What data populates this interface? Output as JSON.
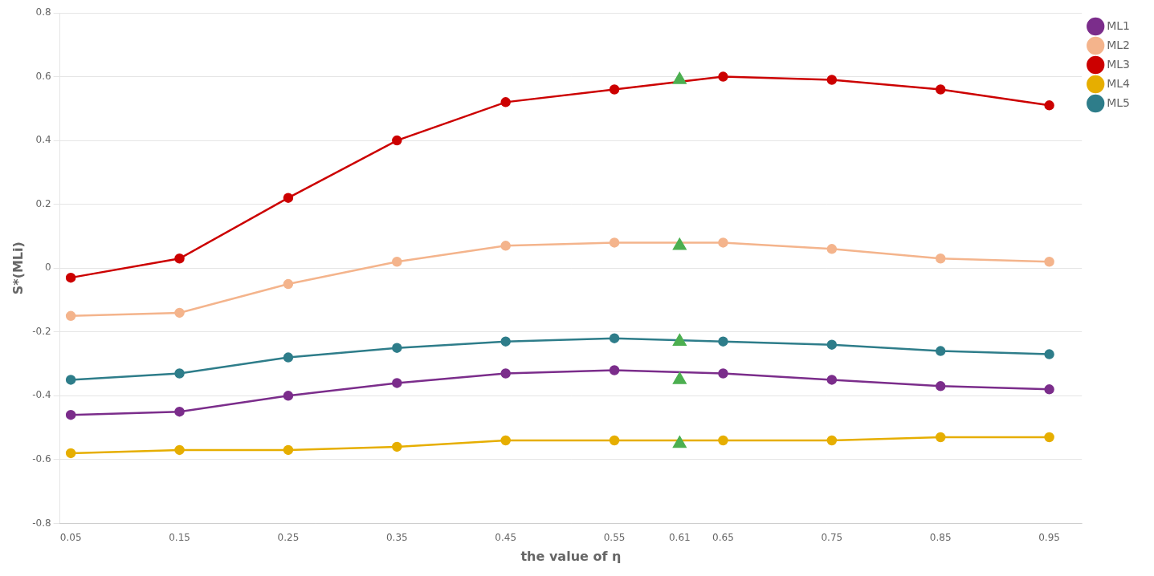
{
  "chart_data": {
    "type": "line",
    "xlabel": "the value of η",
    "ylabel": "S*(MLi)",
    "x": [
      0.05,
      0.15,
      0.25,
      0.35,
      0.45,
      0.55,
      0.65,
      0.75,
      0.85,
      0.95
    ],
    "series": [
      {
        "name": "ML1",
        "color": "#7B2D8B",
        "marker": "circle",
        "values": [
          -0.46,
          -0.45,
          -0.4,
          -0.36,
          -0.33,
          -0.32,
          -0.33,
          -0.35,
          -0.37,
          -0.38
        ]
      },
      {
        "name": "ML2",
        "color": "#F4B48C",
        "marker": "circle",
        "values": [
          -0.15,
          -0.14,
          -0.05,
          0.02,
          0.07,
          0.08,
          0.08,
          0.06,
          0.03,
          0.02
        ]
      },
      {
        "name": "ML3",
        "color": "#CC0000",
        "marker": "circle",
        "values": [
          -0.03,
          0.03,
          0.22,
          0.4,
          0.52,
          0.56,
          0.6,
          0.59,
          0.56,
          0.51
        ]
      },
      {
        "name": "ML4",
        "color": "#E6AE00",
        "marker": "circle",
        "values": [
          -0.58,
          -0.57,
          -0.57,
          -0.56,
          -0.54,
          -0.54,
          -0.54,
          -0.54,
          -0.53,
          -0.53
        ]
      },
      {
        "name": "ML5",
        "color": "#2E7D8A",
        "marker": "circle",
        "values": [
          -0.35,
          -0.33,
          -0.28,
          -0.25,
          -0.23,
          -0.22,
          -0.23,
          -0.24,
          -0.26,
          -0.27
        ]
      },
      {
        "type": "scatter",
        "color": "#4CAF50",
        "marker": "triangle",
        "x": [
          0.61,
          0.61,
          0.61,
          0.61,
          0.61
        ],
        "values": [
          -0.35,
          0.07,
          0.59,
          -0.55,
          -0.23
        ]
      }
    ],
    "xlim": [
      0.04,
      0.98
    ],
    "xticks": [
      0.05,
      0.15,
      0.25,
      0.35,
      0.45,
      0.55,
      0.61,
      0.65,
      0.75,
      0.85,
      0.95
    ],
    "ylim": [
      -0.8,
      0.8
    ],
    "yticks": [
      -0.8,
      -0.6,
      -0.4,
      -0.2,
      0,
      0.2,
      0.4,
      0.6,
      0.8
    ],
    "grid": "y",
    "legend": "right"
  }
}
